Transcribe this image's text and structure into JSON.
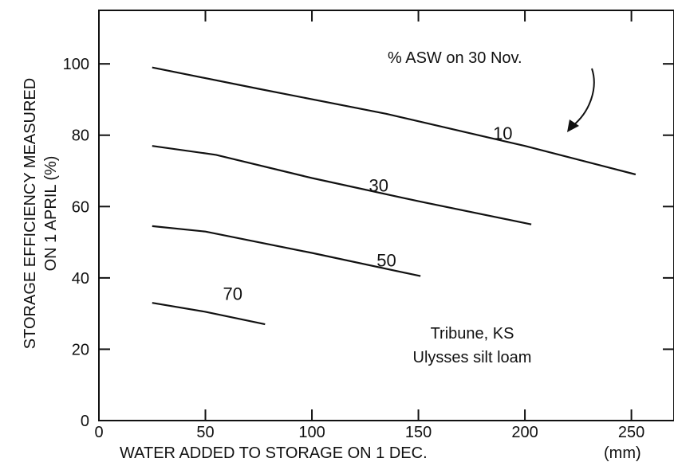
{
  "chart_data": {
    "type": "line",
    "ylabel_line1": "STORAGE EFFICIENCY MEASURED",
    "ylabel_line2": "ON 1 APRIL (%)",
    "xlabel": "WATER ADDED TO STORAGE ON 1 DEC.",
    "xlabel_unit": "(mm)",
    "xlim": [
      0,
      270
    ],
    "ylim": [
      0,
      115
    ],
    "xticks": [
      0,
      50,
      100,
      150,
      200,
      250
    ],
    "yticks": [
      0,
      20,
      40,
      60,
      80,
      100
    ],
    "legend_title": "% ASW on 30 Nov.",
    "annotation_line1": "Tribune, KS",
    "annotation_line2": "Ulysses silt loam",
    "series": [
      {
        "name": "10",
        "x": [
          25,
          75,
          135,
          200,
          252
        ],
        "y": [
          99,
          93,
          86,
          77,
          69
        ]
      },
      {
        "name": "30",
        "x": [
          25,
          55,
          100,
          150,
          203
        ],
        "y": [
          77,
          74.5,
          68,
          61.5,
          55
        ]
      },
      {
        "name": "50",
        "x": [
          25,
          50,
          100,
          151
        ],
        "y": [
          54.5,
          53,
          47,
          40.5
        ]
      },
      {
        "name": "70",
        "x": [
          25,
          50,
          78
        ],
        "y": [
          33,
          30.5,
          27
        ]
      }
    ]
  }
}
